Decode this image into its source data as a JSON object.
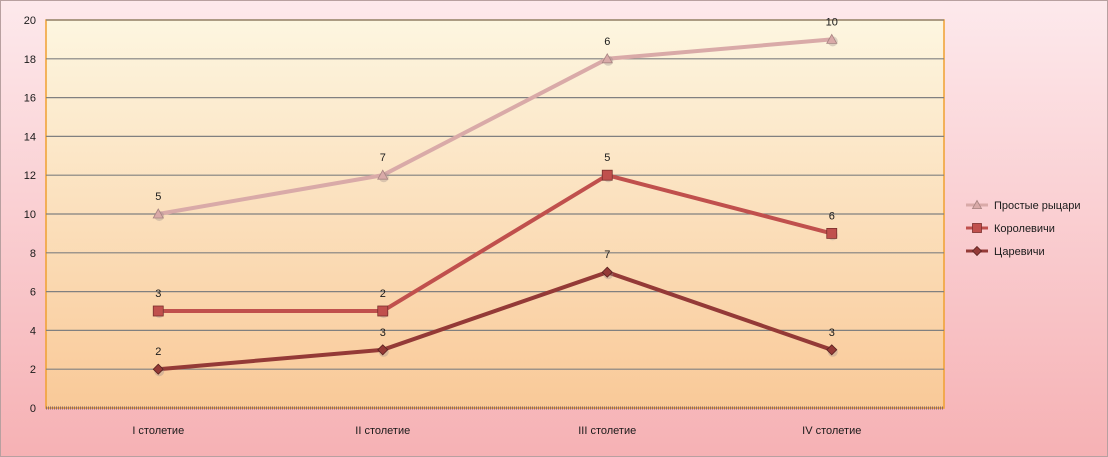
{
  "chart_data": {
    "type": "line",
    "categories": [
      "I столетие",
      "II столетие",
      "III столетие",
      "IV столетие"
    ],
    "ylim": [
      0,
      20
    ],
    "yticks": [
      0,
      2,
      4,
      6,
      8,
      10,
      12,
      14,
      16,
      18,
      20
    ],
    "grid": true,
    "legend_position": "right",
    "colors": {
      "background_top": "#fde9ec",
      "background_bottom": "#f6b1b4",
      "plot_top": "#fdf6e0",
      "plot_bottom": "#f9c998",
      "plot_border": "#f0a030",
      "gridline": "#808080"
    },
    "series": [
      {
        "name": "Простые рыцари",
        "marker": "triangle",
        "color": "#d9aaa8",
        "values": [
          10,
          12,
          18,
          19
        ],
        "labels": [
          "5",
          "7",
          "6",
          "10"
        ]
      },
      {
        "name": "Королевичи",
        "marker": "square",
        "color": "#c0504d",
        "values": [
          5,
          5,
          12,
          9
        ],
        "labels": [
          "3",
          "2",
          "5",
          "6"
        ]
      },
      {
        "name": "Царевичи",
        "marker": "diamond",
        "color": "#943a37",
        "values": [
          2,
          3,
          7,
          3
        ],
        "labels": [
          "2",
          "3",
          "7",
          "3"
        ]
      }
    ]
  }
}
